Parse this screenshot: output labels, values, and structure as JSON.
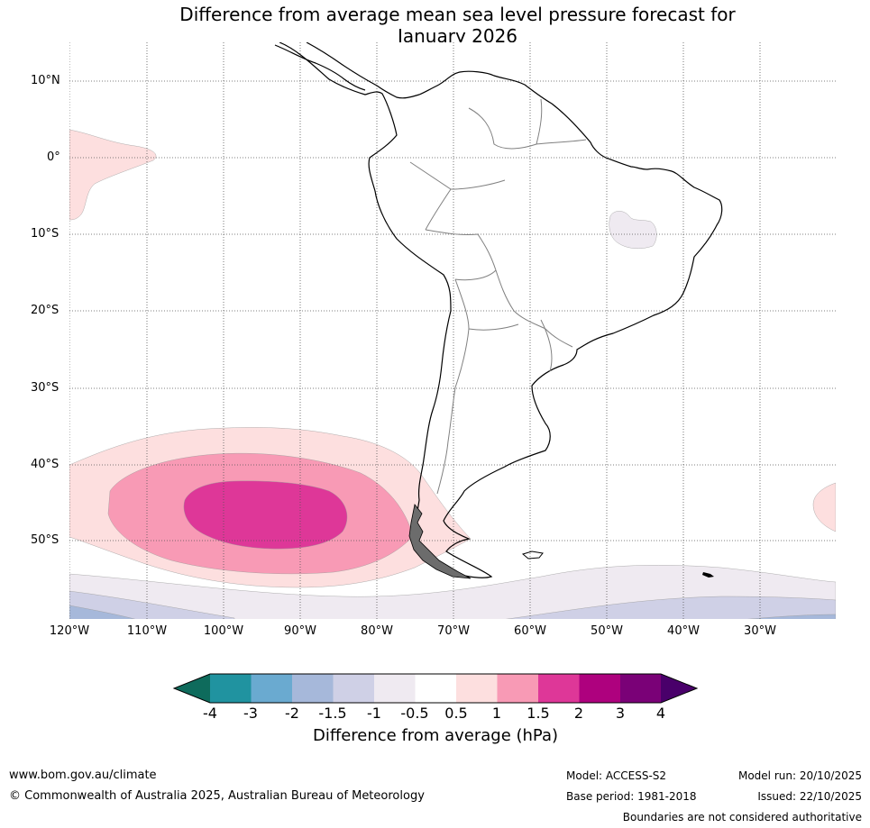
{
  "title": {
    "line1": "Difference from average mean sea level pressure forecast for",
    "line2": "January 2026"
  },
  "map": {
    "lat_labels": [
      "10°N",
      "0°",
      "10°S",
      "20°S",
      "30°S",
      "40°S",
      "50°S"
    ],
    "lon_labels": [
      "120°W",
      "110°W",
      "100°W",
      "90°W",
      "80°W",
      "70°W",
      "60°W",
      "50°W",
      "40°W",
      "30°W"
    ],
    "colors": {
      "c_neg4": "#0e6b5c",
      "c_neg3": "#2093a0",
      "c_neg2": "#6aaad0",
      "c_neg15": "#a6b8da",
      "c_neg1": "#cfd0e6",
      "c_neg05": "#efeaf1",
      "c_0": "#ffffff",
      "c_p05": "#fddfdf",
      "c_p1": "#f89ab5",
      "c_p15": "#de3798",
      "c_p2": "#ae017e",
      "c_p3": "#7a0177",
      "c_p4": "#49006a"
    }
  },
  "colorbar": {
    "ticks": [
      "-4",
      "-3",
      "-2",
      "-1.5",
      "-1",
      "-0.5",
      "0.5",
      "1",
      "1.5",
      "2",
      "3",
      "4"
    ],
    "label": "Difference from average (hPa)"
  },
  "footer": {
    "website": "www.bom.gov.au/climate",
    "copyright": "© Commonwealth of Australia 2025, Australian Bureau of Meteorology",
    "model": "Model: ACCESS-S2",
    "base_period": "Base period: 1981-2018",
    "model_run": "Model run: 20/10/2025",
    "issued": "Issued: 22/10/2025",
    "disclaimer": "Boundaries are not considered authoritative"
  }
}
